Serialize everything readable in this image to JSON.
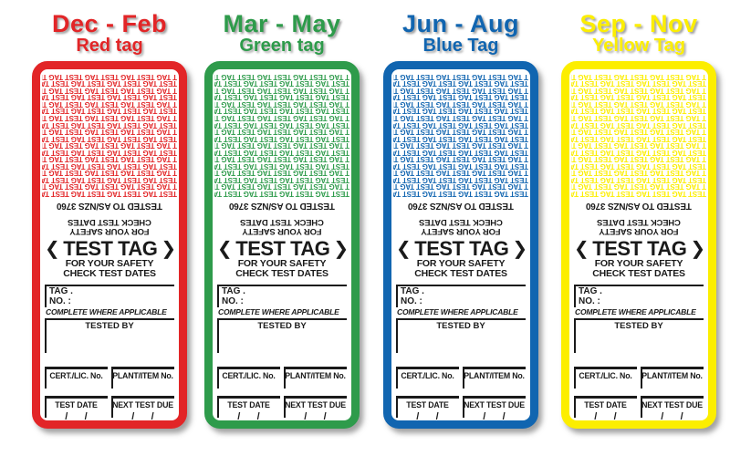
{
  "tags": [
    {
      "season": "Dec - Feb",
      "label": "Red tag",
      "color": "#e22527"
    },
    {
      "season": "Mar - May",
      "label": "Green tag",
      "color": "#2e9b4b"
    },
    {
      "season": "Jun - Aug",
      "label": "Blue Tag",
      "color": "#1165b0"
    },
    {
      "season": "Sep - Nov",
      "label": "Yellow Tag",
      "color": "#fcee00"
    }
  ],
  "tag_content": {
    "pattern_unit": "TEST TAG ",
    "pattern_rows": 18,
    "pattern_repeats_per_row": 7,
    "tested_to": "TESTED TO AS/NZS 3760",
    "safety_line_1": "FOR YOUR SAFETY",
    "safety_line_2": "CHECK TEST DATES",
    "title_left_bracket": "❮",
    "title": "TEST TAG",
    "title_right_bracket": "❯",
    "tag_label": "TAG .",
    "no_label": "NO. :",
    "complete_note": "COMPLETE WHERE APPLICABLE",
    "tested_by_label": "TESTED BY",
    "cert_lic_label": "CERT./LIC. No.",
    "plant_item_label": "PLANT/ITEM No.",
    "test_date_label": "TEST DATE",
    "next_test_due_label": "NEXT TEST DUE",
    "date_slashes": "/      /"
  }
}
